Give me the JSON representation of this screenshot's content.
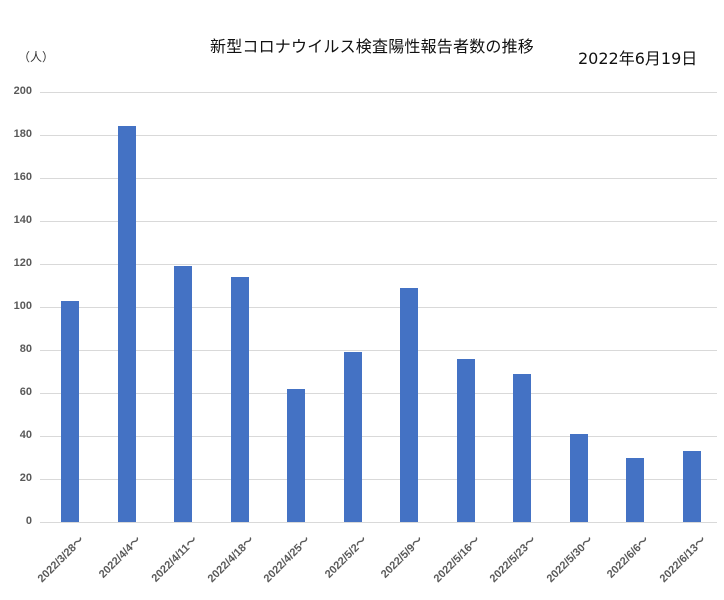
{
  "chart_data": {
    "type": "bar",
    "title": "新型コロナウイルス検査陽性報告者数の推移",
    "subtitle": "2022年6月19日",
    "xlabel": "",
    "ylabel": "（人）",
    "ylim": [
      0,
      200
    ],
    "yticks": [
      0,
      20,
      40,
      60,
      80,
      100,
      120,
      140,
      160,
      180,
      200
    ],
    "grid": true,
    "legend": "none",
    "bar_color": "#4472C4",
    "categories": [
      "2022/3/28〜",
      "2022/4/4〜",
      "2022/4/11〜",
      "2022/4/18〜",
      "2022/4/25〜",
      "2022/5/2〜",
      "2022/5/9〜",
      "2022/5/16〜",
      "2022/5/23〜",
      "2022/5/30〜",
      "2022/6/6〜",
      "2022/6/13〜"
    ],
    "values": [
      103,
      184,
      119,
      114,
      62,
      79,
      109,
      76,
      69,
      41,
      30,
      33
    ]
  },
  "header": {
    "title": "新型コロナウイルス検査陽性報告者数の推移",
    "date": "2022年6月19日",
    "unit": "（人）"
  }
}
